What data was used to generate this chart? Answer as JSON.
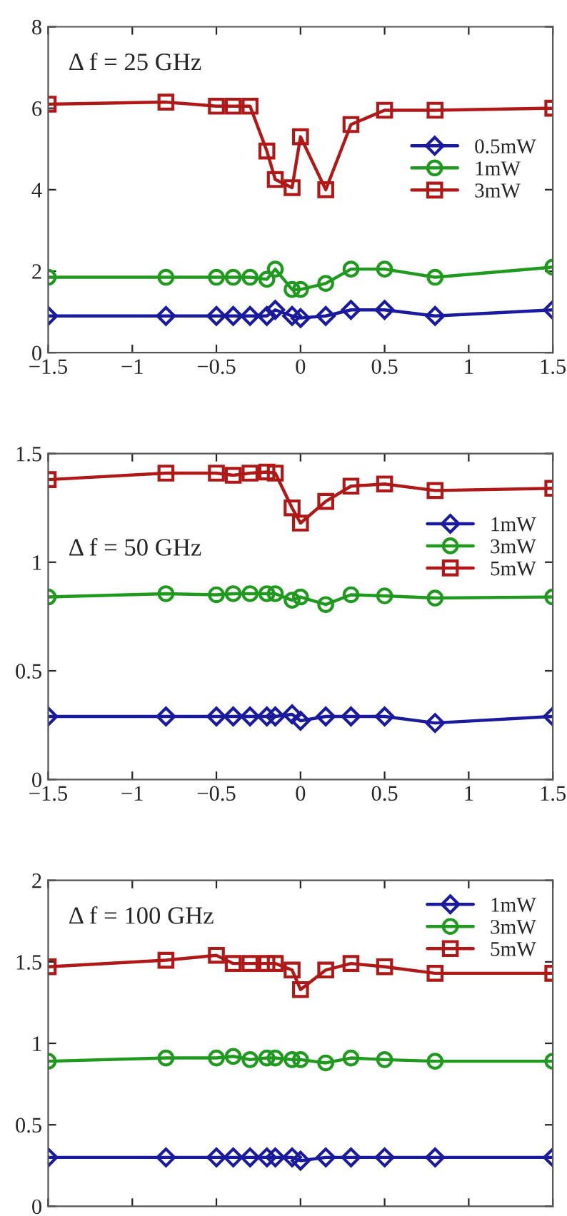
{
  "chart_data": [
    {
      "type": "line",
      "annotations": [
        "Δ f = 25 GHz"
      ],
      "x": [
        -1.5,
        -0.8,
        -0.5,
        -0.4,
        -0.3,
        -0.2,
        -0.15,
        -0.05,
        0,
        0.15,
        0.3,
        0.5,
        0.8,
        1.5
      ],
      "series": [
        {
          "name": "0.5mW",
          "color": "#1a1a9e",
          "marker": "diamond",
          "values": [
            0.9,
            0.9,
            0.9,
            0.9,
            0.9,
            0.9,
            1.05,
            0.9,
            0.85,
            0.9,
            1.05,
            1.05,
            0.9,
            1.05
          ]
        },
        {
          "name": "1mW",
          "color": "#1f9a1f",
          "marker": "circle",
          "values": [
            1.85,
            1.85,
            1.85,
            1.85,
            1.85,
            1.8,
            2.05,
            1.55,
            1.55,
            1.7,
            2.05,
            2.05,
            1.85,
            2.1
          ]
        },
        {
          "name": "3mW",
          "color": "#b01818",
          "marker": "square",
          "values": [
            6.1,
            6.15,
            6.05,
            6.05,
            6.05,
            4.95,
            4.25,
            4.05,
            5.3,
            4.0,
            5.6,
            5.95,
            5.95,
            6.0
          ]
        }
      ],
      "xlim": [
        -1.5,
        1.5
      ],
      "xticks": [
        -1.5,
        -1,
        -0.5,
        0,
        0.5,
        1,
        1.5
      ],
      "ylim": [
        0,
        8
      ],
      "yticks": [
        0,
        2,
        4,
        6,
        8
      ],
      "legend": "right",
      "grid": false
    },
    {
      "type": "line",
      "annotations": [
        "Δ f = 50 GHz"
      ],
      "x": [
        -1.5,
        -0.8,
        -0.5,
        -0.4,
        -0.3,
        -0.2,
        -0.15,
        -0.05,
        0,
        0.15,
        0.3,
        0.5,
        0.8,
        1.5
      ],
      "series": [
        {
          "name": "1mW",
          "color": "#1a1a9e",
          "marker": "diamond",
          "values": [
            0.29,
            0.29,
            0.29,
            0.29,
            0.29,
            0.29,
            0.29,
            0.3,
            0.27,
            0.29,
            0.29,
            0.29,
            0.26,
            0.29
          ]
        },
        {
          "name": "3mW",
          "color": "#1f9a1f",
          "marker": "circle",
          "values": [
            0.84,
            0.855,
            0.85,
            0.855,
            0.855,
            0.855,
            0.855,
            0.825,
            0.84,
            0.805,
            0.85,
            0.845,
            0.835,
            0.84
          ]
        },
        {
          "name": "5mW",
          "color": "#b01818",
          "marker": "square",
          "values": [
            1.38,
            1.41,
            1.41,
            1.4,
            1.41,
            1.415,
            1.41,
            1.25,
            1.18,
            1.28,
            1.35,
            1.36,
            1.33,
            1.34
          ]
        }
      ],
      "xlim": [
        -1.5,
        1.5
      ],
      "xticks": [
        -1.5,
        -1,
        -0.5,
        0,
        0.5,
        1,
        1.5
      ],
      "ylim": [
        0,
        1.5
      ],
      "yticks": [
        0,
        0.5,
        1,
        1.5
      ],
      "legend": "right",
      "grid": false
    },
    {
      "type": "line",
      "annotations": [
        "Δ f = 100 GHz"
      ],
      "x": [
        -1.5,
        -0.8,
        -0.5,
        -0.4,
        -0.3,
        -0.2,
        -0.15,
        -0.05,
        0,
        0.15,
        0.3,
        0.5,
        0.8,
        1.5
      ],
      "series": [
        {
          "name": "1mW",
          "color": "#1a1a9e",
          "marker": "diamond",
          "values": [
            0.3,
            0.3,
            0.3,
            0.3,
            0.3,
            0.3,
            0.3,
            0.3,
            0.28,
            0.3,
            0.3,
            0.3,
            0.3,
            0.3
          ]
        },
        {
          "name": "3mW",
          "color": "#1f9a1f",
          "marker": "circle",
          "values": [
            0.89,
            0.91,
            0.91,
            0.92,
            0.9,
            0.91,
            0.91,
            0.9,
            0.9,
            0.88,
            0.91,
            0.9,
            0.89,
            0.89
          ]
        },
        {
          "name": "5mW",
          "color": "#b01818",
          "marker": "square",
          "values": [
            1.47,
            1.51,
            1.54,
            1.49,
            1.49,
            1.49,
            1.49,
            1.45,
            1.33,
            1.45,
            1.49,
            1.47,
            1.43,
            1.43
          ]
        }
      ],
      "xlim": [
        -1.5,
        1.5
      ],
      "xticks": [
        {
          "value": -1.5,
          "label": null
        },
        {
          "value": -1,
          "label": null
        },
        {
          "value": -0.5,
          "label": null
        },
        {
          "value": 0,
          "label": null
        },
        {
          "value": 0.5,
          "label": null
        },
        {
          "value": 1,
          "label": null
        },
        {
          "value": 1.5,
          "label": null
        }
      ],
      "ylim": [
        0,
        2
      ],
      "yticks": [
        0,
        0.5,
        1,
        1.5,
        2
      ],
      "tick_labels": "y",
      "legend": "top right",
      "grid": false
    }
  ]
}
